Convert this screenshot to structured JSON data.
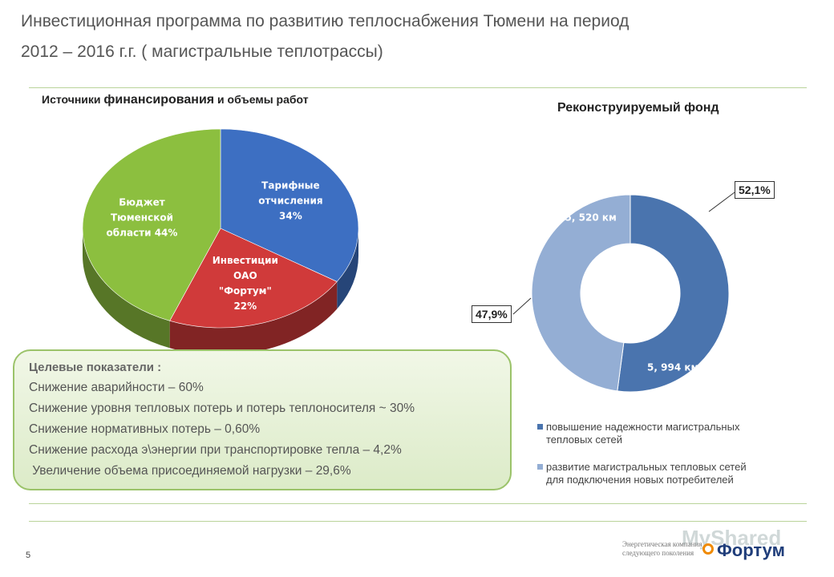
{
  "header": {
    "title_line1": "Инвестиционная программа по развитию теплоснабжения Тюмени на период",
    "title_line2": "2012 – 2016 г.г. ( магистральные теплотрассы)"
  },
  "chart_data": [
    {
      "type": "pie",
      "title_part1": "Источники ",
      "title_part2": "финансирования",
      "title_part3": " и объемы работ",
      "slices": [
        {
          "label_lines": [
            "Тарифные",
            "отчисления",
            "34%"
          ],
          "value": 34,
          "color": "#3d6fc2"
        },
        {
          "label_lines": [
            "Инвестиции",
            "ОАО",
            "\"Фортум\"",
            "22%"
          ],
          "value": 22,
          "color": "#d03a3a"
        },
        {
          "label_lines": [
            "Бюджет",
            "Тюменской",
            "области 44%"
          ],
          "value": 44,
          "color": "#8cbf3f"
        }
      ]
    },
    {
      "type": "pie",
      "subtype": "doughnut",
      "title": "Реконструируемый фонд",
      "slices": [
        {
          "name": "повышение надежности магистральных тепловых сетей",
          "value": 52.1,
          "data_label": "5, 994 км",
          "percent_label": "52,1%",
          "color": "#4a74ae"
        },
        {
          "name": "развитие магистральных тепловых сетей для подключения новых потребителей",
          "value": 47.9,
          "data_label": "5, 520 км",
          "percent_label": "47,9%",
          "color": "#94aed4"
        }
      ],
      "legend": {
        "placement": "bottom-right",
        "items": [
          {
            "line1": "повышение надежности магистральных",
            "line2": "тепловых сетей",
            "color": "#4a74ae"
          },
          {
            "line1": "развитие магистральных тепловых сетей",
            "line2": "для подключения новых потребителей",
            "color": "#94aed4"
          }
        ]
      }
    }
  ],
  "targets": {
    "heading": "Целевые показатели :",
    "items": [
      "Снижение аварийности – 60%",
      "Снижение уровня тепловых потерь и потерь теплоносителя ~ 30%",
      "Снижение нормативных потерь – 0,60%",
      "Снижение расхода э\\энергии при транспортировке тепла – 4,2%",
      " Увеличение объема присоединяемой нагрузки – 29,6%"
    ]
  },
  "footer": {
    "page_number": "5",
    "logo_sub_line1": "Энергетическая компания",
    "logo_sub_line2": "следующего поколения",
    "logo_name": "Фортум",
    "watermark": "MyShared"
  }
}
